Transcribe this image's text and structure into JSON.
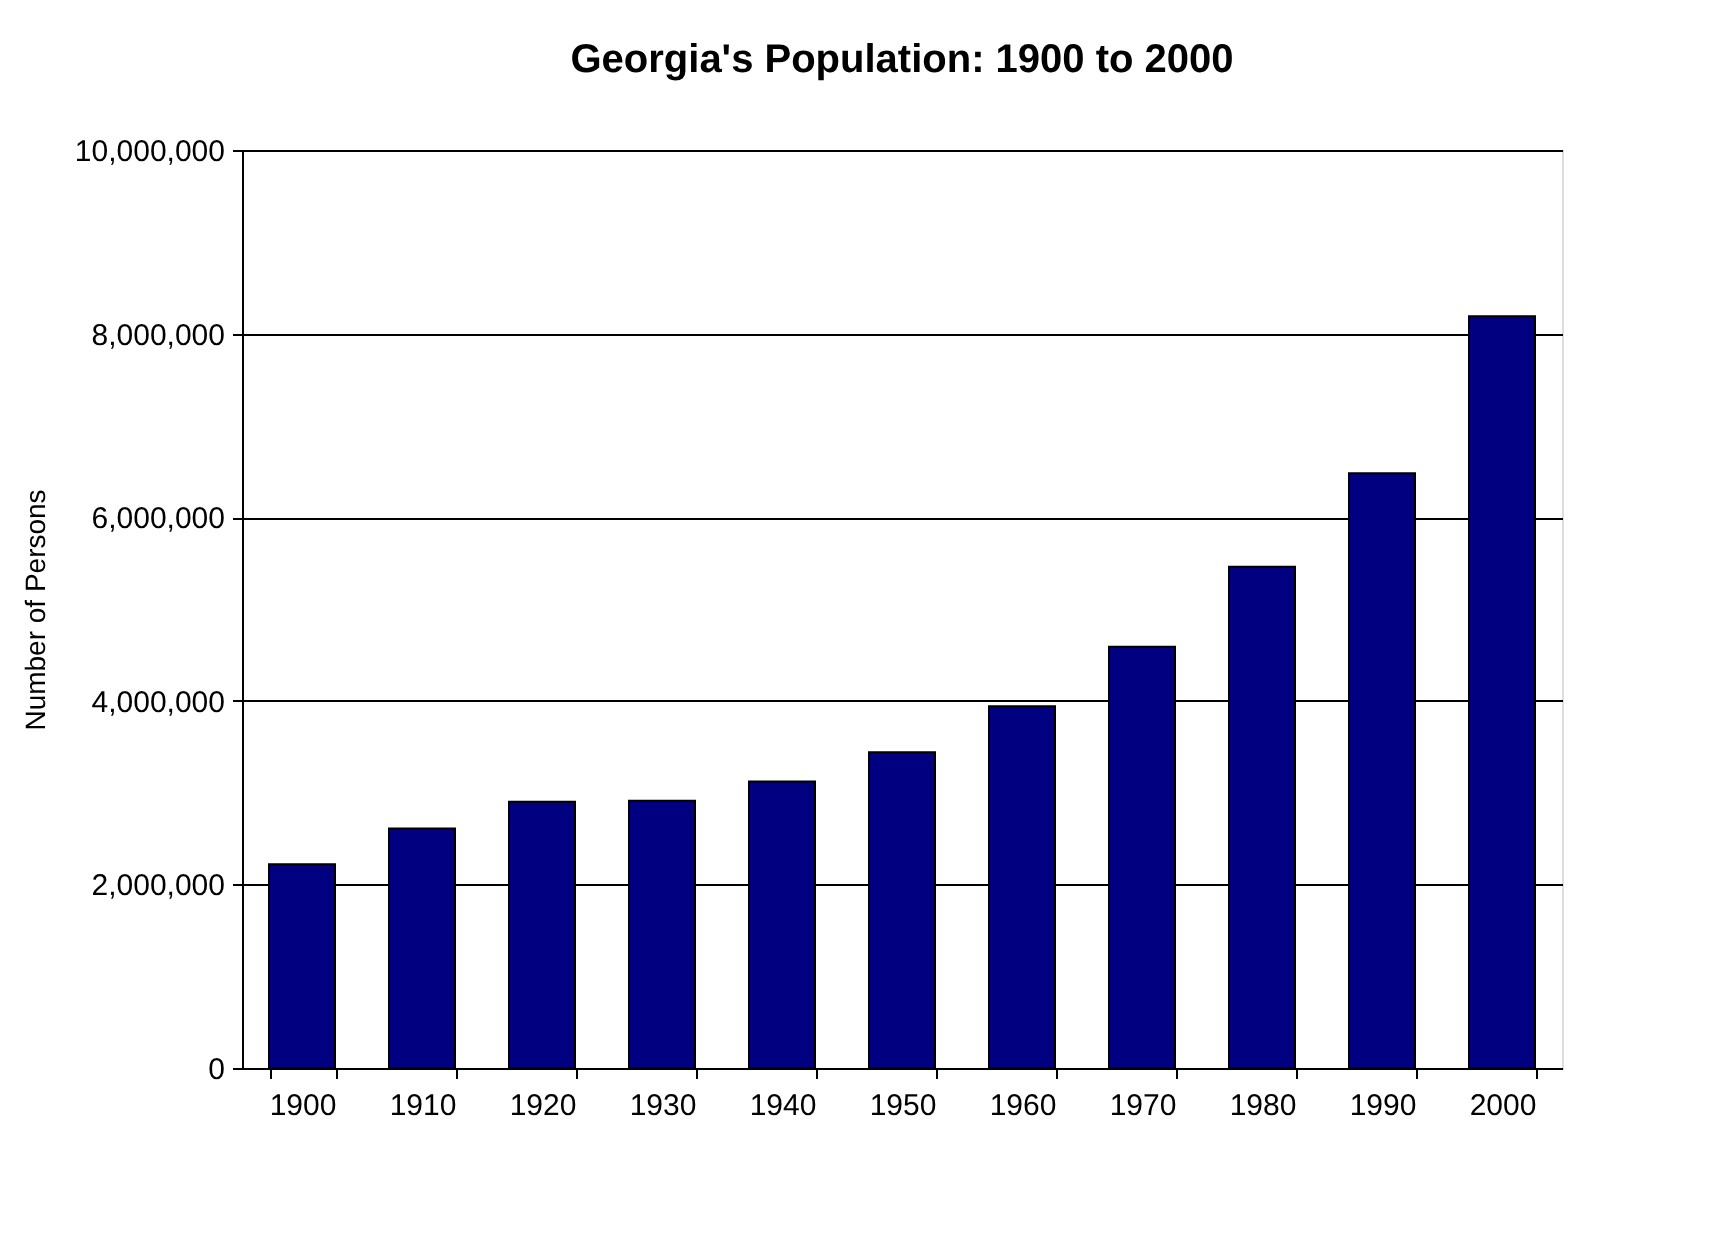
{
  "chart_data": {
    "type": "bar",
    "title": "Georgia's Population: 1900 to 2000",
    "ylabel": "Number of Persons",
    "categories": [
      "1900",
      "1910",
      "1920",
      "1930",
      "1940",
      "1950",
      "1960",
      "1970",
      "1980",
      "1990",
      "2000"
    ],
    "values": [
      2220000,
      2610000,
      2900000,
      2910000,
      3120000,
      3440000,
      3940000,
      4590000,
      5460000,
      6480000,
      8190000
    ],
    "color": "#000080",
    "ylim": [
      0,
      10000000
    ],
    "yticks": [
      {
        "value": 0,
        "label": "0"
      },
      {
        "value": 2000000,
        "label": "2,000,000"
      },
      {
        "value": 4000000,
        "label": "4,000,000"
      },
      {
        "value": 6000000,
        "label": "6,000,000"
      },
      {
        "value": 8000000,
        "label": "8,000,000"
      },
      {
        "value": 10000000,
        "label": "10,000,000"
      }
    ],
    "grid": "y"
  }
}
